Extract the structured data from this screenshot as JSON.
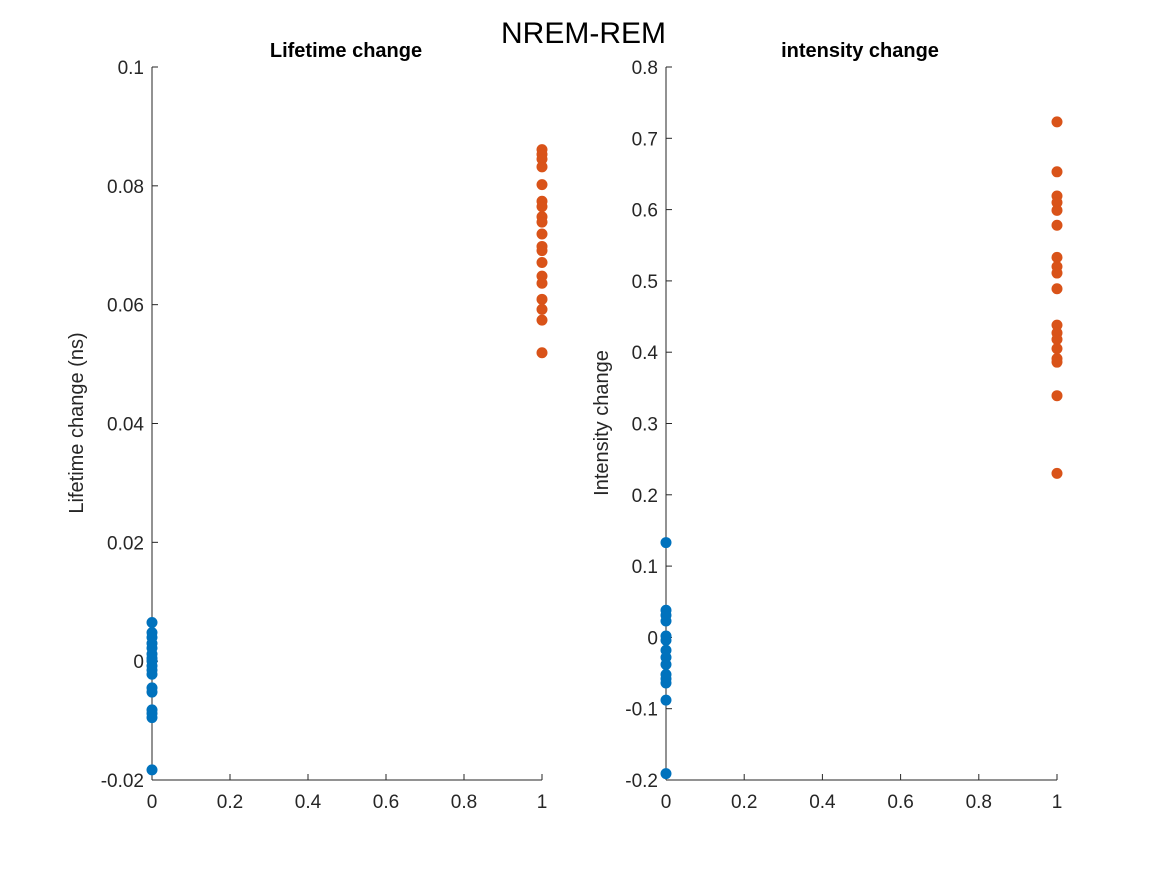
{
  "figure": {
    "suptitle": "NREM-REM"
  },
  "colors": {
    "series0": "#0072BD",
    "series1": "#D95319",
    "axis": "#262626"
  },
  "chart_data": [
    {
      "type": "scatter",
      "title": "Lifetime change",
      "xlabel": "",
      "ylabel": "Lifetime change (ns)",
      "xlim": [
        0,
        1
      ],
      "ylim": [
        -0.02,
        0.1
      ],
      "xticks": [
        0,
        0.2,
        0.4,
        0.6,
        0.8,
        1
      ],
      "xtick_labels": [
        "0",
        "0.2",
        "0.4",
        "0.6",
        "0.8",
        "1"
      ],
      "yticks": [
        -0.02,
        0,
        0.02,
        0.04,
        0.06,
        0.08,
        0.1
      ],
      "ytick_labels": [
        "-0.02",
        "0",
        "0.02",
        "0.04",
        "0.06",
        "0.08",
        "0.1"
      ],
      "grid": false,
      "series": [
        {
          "x": 0,
          "values": [
            0.0065,
            0.0048,
            0.004,
            0.003,
            0.0022,
            0.0012,
            0.0005,
            0.0,
            -0.0008,
            -0.0015,
            -0.0022,
            -0.0045,
            -0.0052,
            -0.0082,
            -0.0088,
            -0.0095,
            -0.0183
          ]
        },
        {
          "x": 1,
          "values": [
            0.0861,
            0.0853,
            0.0845,
            0.0832,
            0.0802,
            0.0774,
            0.0765,
            0.0748,
            0.0739,
            0.0719,
            0.0698,
            0.0691,
            0.0671,
            0.0648,
            0.0636,
            0.0609,
            0.0592,
            0.0574,
            0.0519
          ]
        }
      ]
    },
    {
      "type": "scatter",
      "title": "intensity change",
      "xlabel": "",
      "ylabel": "Intensity change",
      "xlim": [
        0,
        1
      ],
      "ylim": [
        -0.2,
        0.8
      ],
      "xticks": [
        0,
        0.2,
        0.4,
        0.6,
        0.8,
        1
      ],
      "xtick_labels": [
        "0",
        "0.2",
        "0.4",
        "0.6",
        "0.8",
        "1"
      ],
      "yticks": [
        -0.2,
        -0.1,
        0,
        0.1,
        0.2,
        0.3,
        0.4,
        0.5,
        0.6,
        0.7,
        0.8
      ],
      "ytick_labels": [
        "-0.2",
        "-0.1",
        "0",
        "0.1",
        "0.2",
        "0.3",
        "0.4",
        "0.5",
        "0.6",
        "0.7",
        "0.8"
      ],
      "grid": false,
      "series": [
        {
          "x": 0,
          "values": [
            0.133,
            0.038,
            0.031,
            0.023,
            0.002,
            -0.004,
            -0.018,
            -0.028,
            -0.038,
            -0.052,
            -0.058,
            -0.064,
            -0.088,
            -0.191
          ]
        },
        {
          "x": 1,
          "values": [
            0.723,
            0.653,
            0.619,
            0.61,
            0.599,
            0.578,
            0.533,
            0.52,
            0.511,
            0.489,
            0.438,
            0.427,
            0.418,
            0.405,
            0.391,
            0.386,
            0.339,
            0.23
          ]
        }
      ]
    }
  ]
}
